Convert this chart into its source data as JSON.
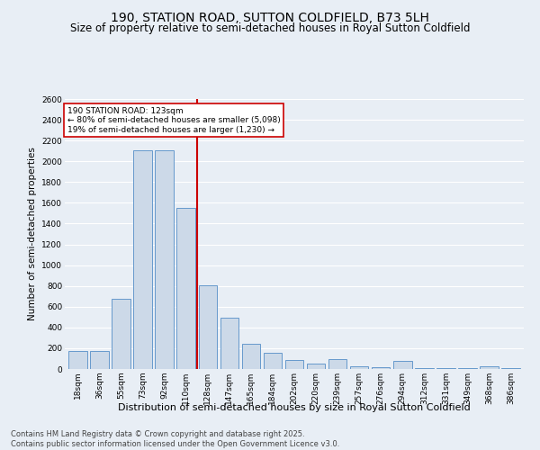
{
  "title": "190, STATION ROAD, SUTTON COLDFIELD, B73 5LH",
  "subtitle": "Size of property relative to semi-detached houses in Royal Sutton Coldfield",
  "xlabel": "Distribution of semi-detached houses by size in Royal Sutton Coldfield",
  "ylabel": "Number of semi-detached properties",
  "categories": [
    "18sqm",
    "36sqm",
    "55sqm",
    "73sqm",
    "92sqm",
    "110sqm",
    "128sqm",
    "147sqm",
    "165sqm",
    "184sqm",
    "202sqm",
    "220sqm",
    "239sqm",
    "257sqm",
    "276sqm",
    "294sqm",
    "312sqm",
    "331sqm",
    "349sqm",
    "368sqm",
    "386sqm"
  ],
  "values": [
    175,
    175,
    680,
    2110,
    2110,
    1550,
    810,
    495,
    240,
    155,
    85,
    55,
    95,
    25,
    20,
    75,
    5,
    5,
    5,
    25,
    5
  ],
  "bar_color": "#ccd9e8",
  "bar_edgecolor": "#6699cc",
  "vline_color": "#cc0000",
  "vline_pos": 5.5,
  "annotation_text": "190 STATION ROAD: 123sqm\n← 80% of semi-detached houses are smaller (5,098)\n19% of semi-detached houses are larger (1,230) →",
  "annotation_box_facecolor": "#ffffff",
  "annotation_box_edgecolor": "#cc0000",
  "footnote": "Contains HM Land Registry data © Crown copyright and database right 2025.\nContains public sector information licensed under the Open Government Licence v3.0.",
  "ylim": [
    0,
    2600
  ],
  "yticks": [
    0,
    200,
    400,
    600,
    800,
    1000,
    1200,
    1400,
    1600,
    1800,
    2000,
    2200,
    2400,
    2600
  ],
  "background_color": "#e8eef5",
  "plot_background": "#e8eef5",
  "grid_color": "#ffffff",
  "title_fontsize": 10,
  "subtitle_fontsize": 8.5,
  "ylabel_fontsize": 7.5,
  "xlabel_fontsize": 8,
  "tick_fontsize": 6.5,
  "annotation_fontsize": 6.5,
  "footnote_fontsize": 6,
  "footnote_color": "#444444"
}
